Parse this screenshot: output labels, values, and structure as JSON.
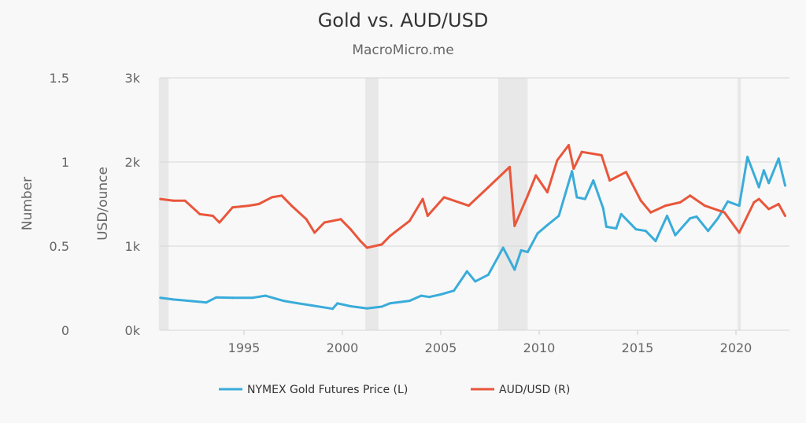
{
  "chart_data": {
    "type": "line",
    "title": "Gold vs. AUD/USD",
    "subtitle": "MacroMicro.me",
    "left_axis": {
      "label": "Number",
      "ticks": [
        "0",
        "0.5",
        "1",
        "1.5"
      ],
      "range": [
        0,
        1.5
      ]
    },
    "second_axis": {
      "label": "USD/ounce",
      "ticks": [
        "0k",
        "1k",
        "2k",
        "3k"
      ],
      "range": [
        0,
        3000
      ]
    },
    "x_axis": {
      "ticks": [
        "1995",
        "2000",
        "2005",
        "2010",
        "2015",
        "2020"
      ],
      "range": [
        "1990-09",
        "2022-09"
      ]
    },
    "grid": true,
    "legend_position": "bottom",
    "recession_shading": [
      [
        "1990-09",
        "1991-03"
      ],
      [
        "2001-03",
        "2001-11"
      ],
      [
        "2007-12",
        "2009-06"
      ],
      [
        "2020-02",
        "2020-04"
      ]
    ],
    "series": [
      {
        "name": "NYMEX Gold Futures Price (L)",
        "axis": "USD/ounce",
        "color": "#3aacda",
        "points": [
          [
            "1990-10",
            385
          ],
          [
            "1991-06",
            365
          ],
          [
            "1992-06",
            345
          ],
          [
            "1993-02",
            330
          ],
          [
            "1993-08",
            390
          ],
          [
            "1994-06",
            385
          ],
          [
            "1995-06",
            385
          ],
          [
            "1996-02",
            410
          ],
          [
            "1997-01",
            350
          ],
          [
            "1997-10",
            320
          ],
          [
            "1998-06",
            295
          ],
          [
            "1999-07",
            255
          ],
          [
            "1999-10",
            320
          ],
          [
            "2000-06",
            285
          ],
          [
            "2001-04",
            260
          ],
          [
            "2002-01",
            280
          ],
          [
            "2002-06",
            320
          ],
          [
            "2003-06",
            350
          ],
          [
            "2004-01",
            410
          ],
          [
            "2004-06",
            395
          ],
          [
            "2005-01",
            425
          ],
          [
            "2005-09",
            470
          ],
          [
            "2006-05",
            700
          ],
          [
            "2006-10",
            580
          ],
          [
            "2007-06",
            660
          ],
          [
            "2008-03",
            980
          ],
          [
            "2008-10",
            720
          ],
          [
            "2009-02",
            950
          ],
          [
            "2009-06",
            930
          ],
          [
            "2009-12",
            1150
          ],
          [
            "2010-06",
            1250
          ],
          [
            "2011-01",
            1360
          ],
          [
            "2011-09",
            1890
          ],
          [
            "2011-12",
            1580
          ],
          [
            "2012-05",
            1560
          ],
          [
            "2012-10",
            1780
          ],
          [
            "2013-04",
            1450
          ],
          [
            "2013-06",
            1230
          ],
          [
            "2013-12",
            1210
          ],
          [
            "2014-03",
            1380
          ],
          [
            "2014-12",
            1200
          ],
          [
            "2015-06",
            1180
          ],
          [
            "2015-12",
            1060
          ],
          [
            "2016-07",
            1360
          ],
          [
            "2016-12",
            1130
          ],
          [
            "2017-09",
            1330
          ],
          [
            "2018-01",
            1350
          ],
          [
            "2018-08",
            1180
          ],
          [
            "2019-02",
            1330
          ],
          [
            "2019-08",
            1530
          ],
          [
            "2020-03",
            1480
          ],
          [
            "2020-08",
            2060
          ],
          [
            "2021-03",
            1700
          ],
          [
            "2021-06",
            1900
          ],
          [
            "2021-09",
            1750
          ],
          [
            "2022-03",
            2040
          ],
          [
            "2022-07",
            1720
          ]
        ]
      },
      {
        "name": "AUD/USD (R)",
        "axis": "Number",
        "color": "#e9563b",
        "points": [
          [
            "1990-10",
            0.78
          ],
          [
            "1991-06",
            0.77
          ],
          [
            "1992-01",
            0.77
          ],
          [
            "1992-10",
            0.69
          ],
          [
            "1993-06",
            0.68
          ],
          [
            "1993-10",
            0.64
          ],
          [
            "1994-06",
            0.73
          ],
          [
            "1995-04",
            0.74
          ],
          [
            "1995-10",
            0.75
          ],
          [
            "1996-06",
            0.79
          ],
          [
            "1996-12",
            0.8
          ],
          [
            "1997-06",
            0.74
          ],
          [
            "1998-03",
            0.66
          ],
          [
            "1998-08",
            0.58
          ],
          [
            "1999-02",
            0.64
          ],
          [
            "1999-12",
            0.66
          ],
          [
            "2000-06",
            0.6
          ],
          [
            "2000-12",
            0.53
          ],
          [
            "2001-04",
            0.49
          ],
          [
            "2002-01",
            0.51
          ],
          [
            "2002-06",
            0.56
          ],
          [
            "2003-06",
            0.65
          ],
          [
            "2004-02",
            0.78
          ],
          [
            "2004-05",
            0.68
          ],
          [
            "2005-03",
            0.79
          ],
          [
            "2006-06",
            0.74
          ],
          [
            "2007-06",
            0.85
          ],
          [
            "2008-07",
            0.97
          ],
          [
            "2008-10",
            0.62
          ],
          [
            "2009-06",
            0.8
          ],
          [
            "2009-11",
            0.92
          ],
          [
            "2010-06",
            0.82
          ],
          [
            "2010-12",
            1.01
          ],
          [
            "2011-07",
            1.1
          ],
          [
            "2011-10",
            0.96
          ],
          [
            "2012-03",
            1.06
          ],
          [
            "2013-03",
            1.04
          ],
          [
            "2013-08",
            0.89
          ],
          [
            "2014-06",
            0.94
          ],
          [
            "2015-03",
            0.77
          ],
          [
            "2015-09",
            0.7
          ],
          [
            "2016-06",
            0.74
          ],
          [
            "2017-03",
            0.76
          ],
          [
            "2017-09",
            0.8
          ],
          [
            "2018-06",
            0.74
          ],
          [
            "2019-06",
            0.7
          ],
          [
            "2020-03",
            0.58
          ],
          [
            "2020-12",
            0.76
          ],
          [
            "2021-03",
            0.78
          ],
          [
            "2021-09",
            0.72
          ],
          [
            "2022-03",
            0.75
          ],
          [
            "2022-07",
            0.68
          ]
        ]
      }
    ]
  }
}
